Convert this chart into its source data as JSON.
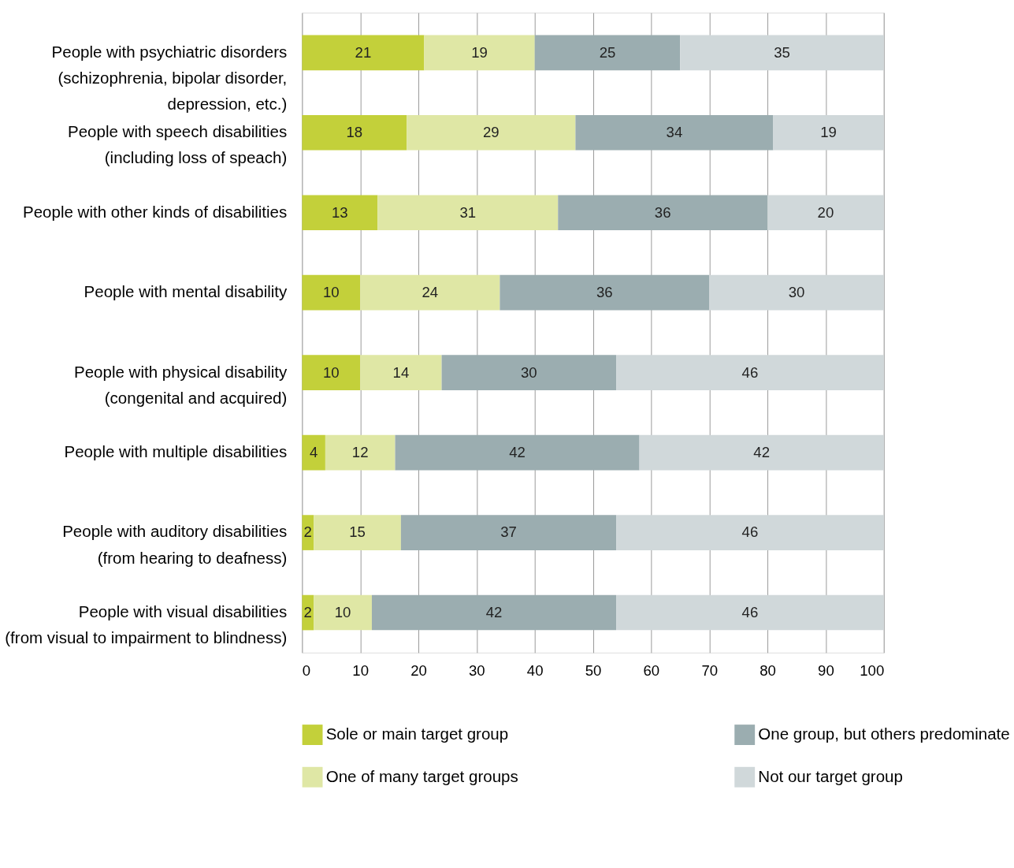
{
  "chart_data": {
    "type": "bar",
    "orientation": "horizontal",
    "stacked": true,
    "data_labels": true,
    "grid": "x",
    "legend": "bottom",
    "categories": [
      "People with psychiatric disorders\n(schizophrenia, bipolar disorder,\ndepression, etc.)",
      "People with speech disabilities\n(including loss of speach)",
      "People with other kinds of disabilities",
      "People with mental disability",
      "People with physical disability\n(congenital and acquired)",
      "People with multiple disabilities",
      "People with auditory disabilities\n(from hearing to deafness)",
      "People with visual disabilities\n(from visual to impairment to blindness)"
    ],
    "series": [
      {
        "name": "Sole or main target group",
        "color": "#c3d03a",
        "values": [
          21,
          18,
          13,
          10,
          10,
          4,
          2,
          2
        ]
      },
      {
        "name": "One of many target groups",
        "color": "#dfe7a5",
        "values": [
          19,
          29,
          31,
          24,
          14,
          12,
          15,
          10
        ]
      },
      {
        "name": "One group, but others predominate",
        "color": "#9badb0",
        "values": [
          25,
          34,
          36,
          36,
          30,
          42,
          37,
          42
        ]
      },
      {
        "name": "Not our target group",
        "color": "#d0d8da",
        "values": [
          35,
          19,
          20,
          30,
          46,
          42,
          46,
          46
        ]
      }
    ],
    "xlim": [
      0,
      100
    ],
    "xticks": [
      0,
      10,
      20,
      30,
      40,
      50,
      60,
      70,
      80,
      90,
      100
    ]
  }
}
